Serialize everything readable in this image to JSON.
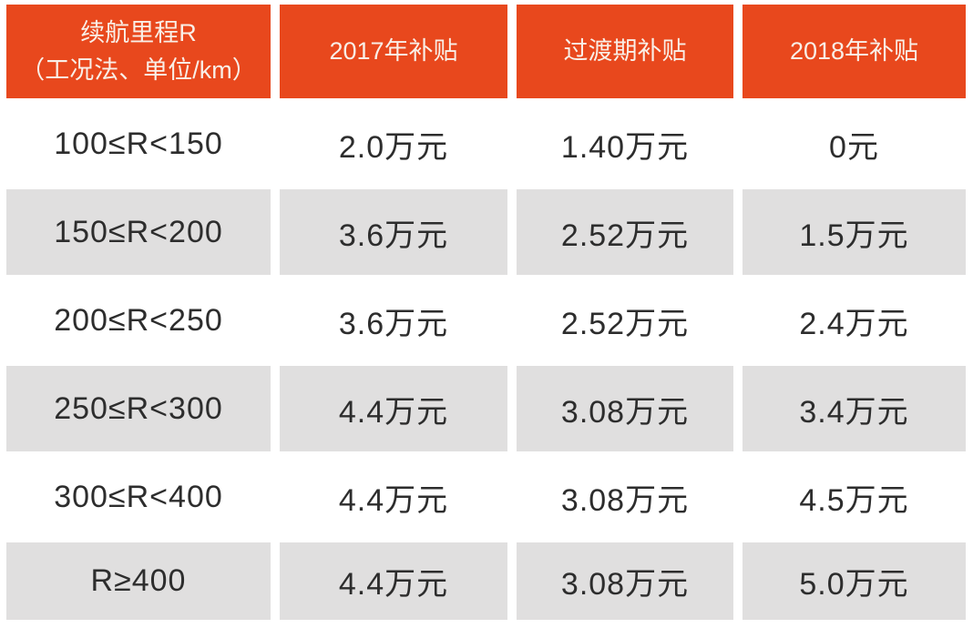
{
  "colors": {
    "header_bg": "#e8481d",
    "header_text": "#f9efe7",
    "alt_row_bg": "#e0dfdf",
    "text": "#2d2d2d",
    "background": "#ffffff"
  },
  "chart_data": {
    "type": "table",
    "title": "",
    "columns": [
      "续航里程R\n（工况法、单位/km）",
      "2017年补贴",
      "过渡期补贴",
      "2018年补贴"
    ],
    "rows": [
      [
        "100≤R<150",
        "2.0万元",
        "1.40万元",
        "0元"
      ],
      [
        "150≤R<200",
        "3.6万元",
        "2.52万元",
        "1.5万元"
      ],
      [
        "200≤R<250",
        "3.6万元",
        "2.52万元",
        "2.4万元"
      ],
      [
        "250≤R<300",
        "4.4万元",
        "3.08万元",
        "3.4万元"
      ],
      [
        "300≤R<400",
        "4.4万元",
        "3.08万元",
        "4.5万元"
      ],
      [
        "R≥400",
        "4.4万元",
        "3.08万元",
        "5.0万元"
      ]
    ],
    "layout": {
      "header_background": "#e8481d",
      "alternating_rows": true,
      "first_data_row_background": "#ffffff",
      "alt_data_row_background": "#e0dfdf"
    }
  }
}
